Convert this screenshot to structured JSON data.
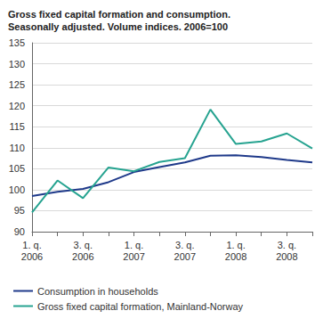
{
  "chart_data": {
    "type": "line",
    "title": "Gross fixed capital formation and consumption.\nSeasonally adjusted. Volume indices. 2006=100",
    "categories": [
      "1. q.\n2006",
      null,
      "3. q.\n2006",
      null,
      "1. q.\n2007",
      null,
      "3. q.\n2007",
      null,
      "1. q.\n2008",
      null,
      "3. q.\n2008",
      null
    ],
    "series": [
      {
        "name": "Consumption in households",
        "color": "#1f3a8a",
        "values": [
          98.5,
          99.5,
          100.2,
          101.8,
          104.2,
          105.4,
          106.5,
          108.1,
          108.2,
          107.8,
          107.1,
          106.5
        ]
      },
      {
        "name": "Gross fixed capital formation, Mainland-Norway",
        "color": "#26a390",
        "values": [
          94.6,
          102.2,
          98.0,
          105.3,
          104.4,
          106.6,
          107.5,
          119.1,
          110.9,
          111.5,
          113.4,
          109.8
        ]
      }
    ],
    "ylim": [
      90,
      135
    ],
    "yticks": [
      90,
      95,
      100,
      105,
      110,
      115,
      120,
      125,
      130,
      135
    ],
    "grid": true,
    "legend": "bottom"
  }
}
